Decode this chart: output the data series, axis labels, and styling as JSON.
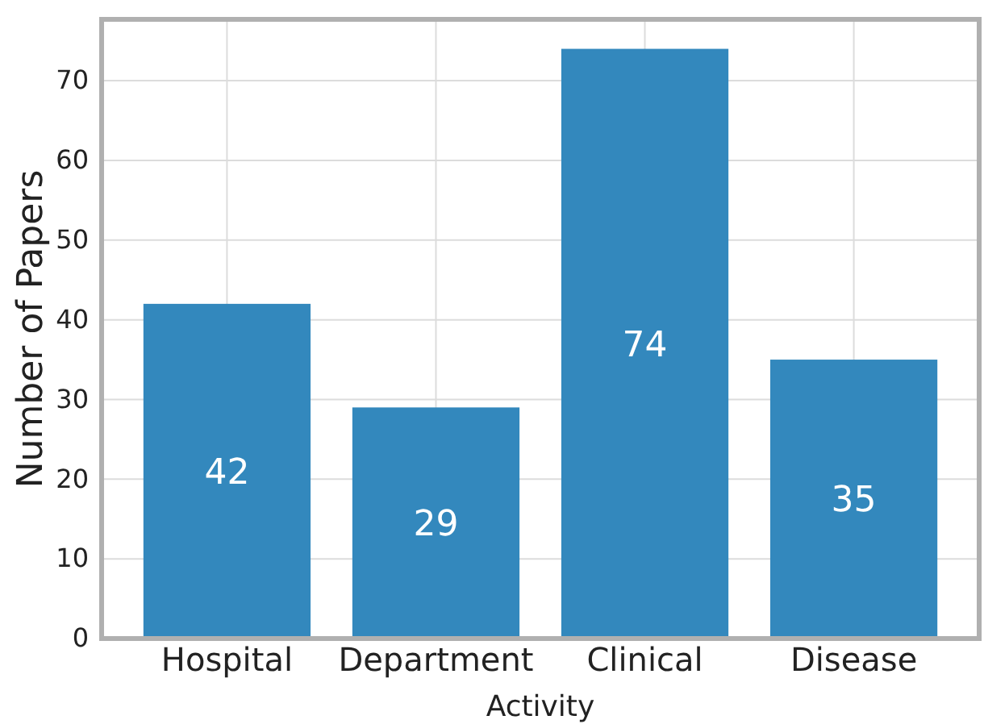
{
  "chart_data": {
    "type": "bar",
    "xlabel": "Activity",
    "ylabel": "Number of Papers",
    "categories": [
      "Hospital",
      "Department",
      "Clinical",
      "Disease"
    ],
    "values": [
      42,
      29,
      74,
      35
    ],
    "color": "#3388bd",
    "ylim": [
      0,
      77.7
    ],
    "yticks": [
      0,
      10,
      20,
      30,
      40,
      50,
      60,
      70
    ],
    "grid": true,
    "data_labels": true
  }
}
